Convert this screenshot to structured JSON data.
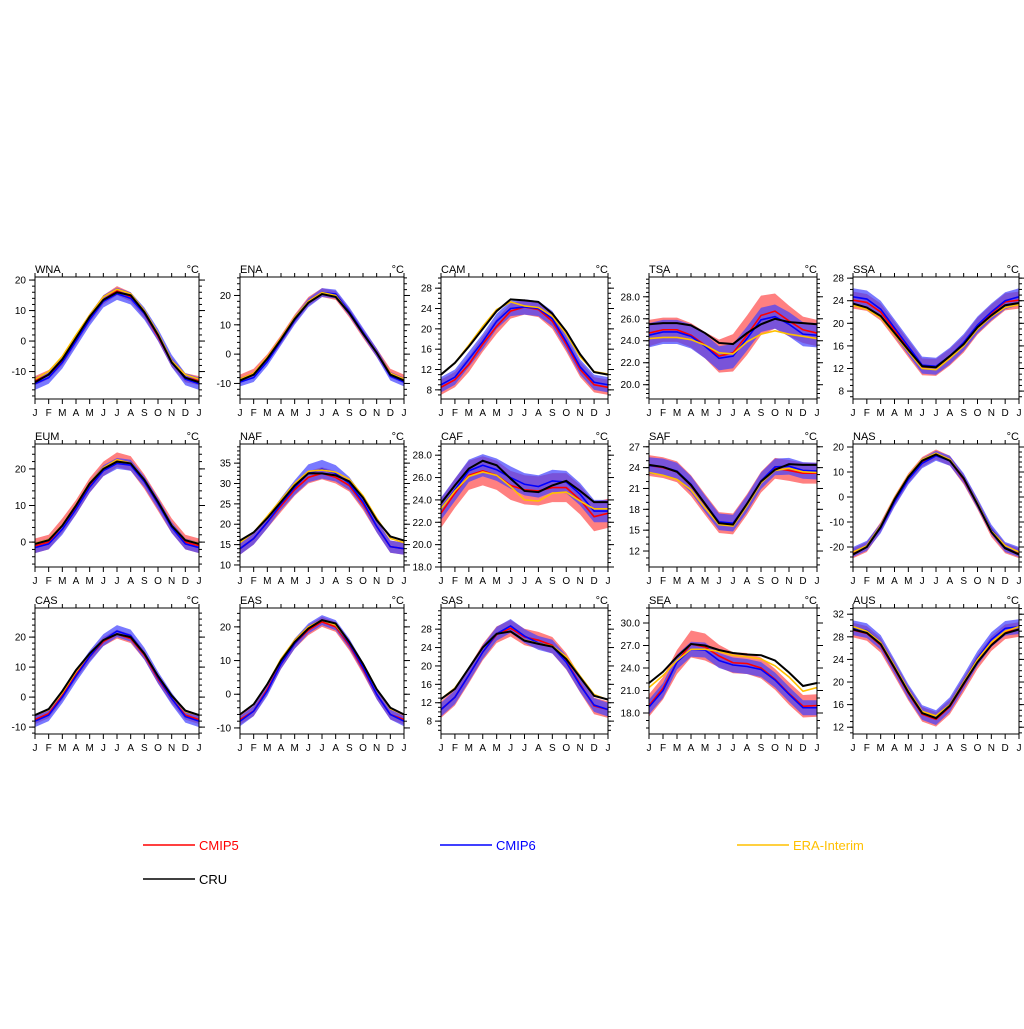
{
  "chart_data": [
    {
      "type": "line",
      "title": "WNA",
      "unit": "°C",
      "ylim": [
        -19,
        21
      ],
      "yticks": [
        "-10",
        "0",
        "10",
        "20"
      ],
      "cru": [
        -13.5,
        -11,
        -6,
        1,
        8,
        13.5,
        16,
        15,
        9.5,
        2,
        -7,
        -12,
        -13.5
      ],
      "era": [
        -12.5,
        -10,
        -5,
        2,
        8.5,
        14.5,
        17,
        15.5,
        10,
        2.5,
        -6.5,
        -11,
        -12.5
      ],
      "cmip5": [
        -13,
        -11,
        -6.5,
        0.5,
        7.5,
        13.5,
        16.5,
        14.5,
        9,
        1.5,
        -7,
        -12,
        -13
      ],
      "cmip6": [
        -14,
        -12,
        -7,
        0,
        7,
        13,
        15.5,
        14,
        9,
        2,
        -6.5,
        -12.5,
        -14
      ],
      "cmip5_spread": 1.5,
      "cmip6_spread": 2
    },
    {
      "type": "line",
      "title": "ENA",
      "unit": "°C",
      "ylim": [
        -15.3,
        26.3
      ],
      "yticks": [
        "-10",
        "0",
        "10",
        "20"
      ],
      "cru": [
        -9,
        -7,
        -1.5,
        5,
        12,
        17.5,
        20.5,
        19.5,
        14,
        7,
        0.5,
        -7,
        -9
      ],
      "era": [
        -8.5,
        -6.5,
        -1,
        5.5,
        12.5,
        18,
        21,
        20,
        14,
        7,
        0.5,
        -6.5,
        -8.5
      ],
      "cmip5": [
        -8.5,
        -6.5,
        -1.5,
        5,
        12,
        18,
        21,
        20,
        14,
        7,
        0.5,
        -6.5,
        -8.5
      ],
      "cmip6": [
        -9.5,
        -8,
        -2.5,
        4.5,
        11.5,
        17.5,
        21,
        20.5,
        14.5,
        7.5,
        0.5,
        -7.5,
        -9.5
      ],
      "cmip5_spread": 1.5,
      "cmip6_spread": 1.5
    },
    {
      "type": "line",
      "title": "CAM",
      "unit": "°C",
      "ylim": [
        6.2,
        30.2
      ],
      "yticks": [
        "8",
        "12",
        "16",
        "20",
        "24",
        "28"
      ],
      "cru": [
        11,
        13.3,
        16.5,
        20,
        23.5,
        25.8,
        25.6,
        25.3,
        23,
        19.5,
        15,
        11.5,
        11
      ],
      "era": [
        11,
        13.3,
        16.8,
        20.5,
        23.8,
        25.3,
        24.5,
        24.2,
        22.5,
        19,
        14.5,
        11.6,
        11.1
      ],
      "cmip5": [
        8.5,
        10,
        13,
        17,
        20.5,
        23.5,
        24.3,
        23.8,
        21.5,
        17,
        12,
        9,
        8.5
      ],
      "cmip6": [
        9,
        10.5,
        14,
        17.5,
        21.5,
        24,
        24.3,
        24,
        22,
        17.5,
        12.5,
        9.5,
        9
      ],
      "cmip5_spread": 1.5,
      "cmip6_spread": 1.5
    },
    {
      "type": "line",
      "title": "TSA",
      "unit": "°C",
      "ylim": [
        18.7,
        29.8
      ],
      "yticks": [
        "20.0",
        "22.0",
        "24.0",
        "26.0",
        "28.0"
      ],
      "cru": [
        25.5,
        25.6,
        25.6,
        25.4,
        24.7,
        23.8,
        23.7,
        24.7,
        25.5,
        26.0,
        25.7,
        25.6,
        25.5
      ],
      "era": [
        24.2,
        24.3,
        24.3,
        24.1,
        23.6,
        22.9,
        22.8,
        23.9,
        24.6,
        24.9,
        24.6,
        24.4,
        24.2
      ],
      "cmip5": [
        24.7,
        25,
        25,
        24.5,
        23.6,
        22.6,
        22.9,
        24.5,
        26.3,
        26.7,
        25.8,
        25,
        24.7
      ],
      "cmip6": [
        24.5,
        24.8,
        24.8,
        24.4,
        23.5,
        22.4,
        22.6,
        24.2,
        25.9,
        26.2,
        25.5,
        24.6,
        24.5
      ],
      "cmip5_spread": [
        1.2,
        1.1,
        1.1,
        1.1,
        1.2,
        1.5,
        1.7,
        1.8,
        1.8,
        1.6,
        1.4,
        1.2,
        1.2
      ],
      "cmip6_spread": 1.1
    },
    {
      "type": "line",
      "title": "SSA",
      "unit": "°C",
      "ylim": [
        6.6,
        28.2
      ],
      "yticks": [
        "8",
        "12",
        "16",
        "20",
        "24",
        "28"
      ],
      "cru": [
        23.5,
        22.8,
        21.3,
        18.3,
        15.3,
        12.4,
        12.2,
        14.2,
        16.3,
        19.3,
        21.4,
        23.2,
        23.6
      ],
      "era": [
        23.2,
        22.5,
        21,
        18,
        15,
        12,
        11.8,
        13.8,
        16,
        19,
        21.2,
        22.8,
        23.3
      ],
      "cmip5": [
        24.1,
        23.7,
        22,
        18.8,
        15.5,
        12.3,
        12.2,
        14,
        16.3,
        19.5,
        21.8,
        23.8,
        24.1
      ],
      "cmip6": [
        24.7,
        24.3,
        22.5,
        19.2,
        15.9,
        12.6,
        12.4,
        14.2,
        16.6,
        19.7,
        22,
        24,
        24.7
      ],
      "cmip5_spread": 1.5,
      "cmip6_spread": 1.5
    },
    {
      "type": "line",
      "title": "EUM",
      "unit": "°C",
      "ylim": [
        -6.8,
        26.8
      ],
      "yticks": [
        "0",
        "10",
        "20"
      ],
      "cru": [
        -0.5,
        0.5,
        4.5,
        10,
        16,
        20,
        22,
        21.5,
        17,
        11,
        4.5,
        0.5,
        -0.5
      ],
      "era": [
        -0.3,
        0.7,
        4.7,
        10.2,
        16.2,
        20.3,
        22.5,
        21.6,
        17,
        11,
        4.6,
        0.6,
        -0.3
      ],
      "cmip5": [
        -1,
        0,
        4.5,
        9.5,
        15.5,
        20,
        22.5,
        21.5,
        16.5,
        10.5,
        4.5,
        0,
        -1
      ],
      "cmip6": [
        -1.5,
        -0.5,
        3.5,
        9,
        15,
        19.5,
        21.5,
        21,
        16.5,
        10.5,
        4,
        -0.5,
        -1.5
      ],
      "cmip5_spread": 2,
      "cmip6_spread": 1.5
    },
    {
      "type": "line",
      "title": "NAF",
      "unit": "°C",
      "ylim": [
        9.5,
        39.7
      ],
      "yticks": [
        "10",
        "15",
        "20",
        "25",
        "30",
        "35"
      ],
      "cru": [
        16,
        18,
        21.5,
        25.5,
        29.5,
        32.5,
        32.5,
        32,
        30.5,
        26.5,
        21,
        17,
        16
      ],
      "era": [
        15.5,
        18,
        22,
        26,
        30,
        33,
        33.3,
        32.8,
        31,
        27,
        21.5,
        16.5,
        15.5
      ],
      "cmip5": [
        14,
        16.5,
        20.5,
        24.5,
        28.5,
        31.5,
        32.5,
        31.5,
        29.5,
        25,
        19.5,
        14.5,
        14
      ],
      "cmip6": [
        14,
        16.5,
        20.5,
        25,
        29,
        32.5,
        33.5,
        32.5,
        30,
        25.5,
        19.5,
        14.5,
        14
      ],
      "cmip5_spread": 1.5,
      "cmip6_spread": [
        1.5,
        1.5,
        1.5,
        1.5,
        1.8,
        2.2,
        2.3,
        2.0,
        1.6,
        1.5,
        1.5,
        1.5,
        1.5
      ]
    },
    {
      "type": "line",
      "title": "CAF",
      "unit": "°C",
      "ylim": [
        18,
        29
      ],
      "yticks": [
        "18.0",
        "20.0",
        "22.0",
        "24.0",
        "26.0",
        "28.0"
      ],
      "cru": [
        23.7,
        25.3,
        26.8,
        27.5,
        27.1,
        25.9,
        24.8,
        24.7,
        25.3,
        25.7,
        24.8,
        23.8,
        23.8
      ],
      "era": [
        23.2,
        24.8,
        26.1,
        26.5,
        26.2,
        25.2,
        24.0,
        23.9,
        24.6,
        24.7,
        23.9,
        23.2,
        23.2
      ],
      "cmip5": [
        22.8,
        24.6,
        26.2,
        26.6,
        26.2,
        25.3,
        24.9,
        24.8,
        25.1,
        25.1,
        24.0,
        22.5,
        22.8
      ],
      "cmip6": [
        23.2,
        24.9,
        26.6,
        27.1,
        26.7,
        26.0,
        25.4,
        25.2,
        25.7,
        25.6,
        24.5,
        23.0,
        23.0
      ],
      "cmip5_spread": 1.3,
      "cmip6_spread": 1.0
    },
    {
      "type": "line",
      "title": "SAF",
      "unit": "°C",
      "ylim": [
        9.7,
        27.4
      ],
      "yticks": [
        "12",
        "15",
        "18",
        "21",
        "24",
        "27"
      ],
      "cru": [
        24.4,
        24.1,
        23.4,
        21.5,
        18.8,
        16.0,
        15.8,
        18.8,
        22.0,
        23.7,
        24.5,
        24.4,
        24.4
      ],
      "era": [
        23.3,
        22.9,
        22.3,
        20.8,
        18.2,
        15.8,
        15.6,
        18.5,
        21.8,
        23.6,
        23.9,
        23.4,
        23.3
      ],
      "cmip5": [
        24.3,
        24,
        23.4,
        21.4,
        18.7,
        16.1,
        15.9,
        18.7,
        21.9,
        23.9,
        23.6,
        23.2,
        23.2
      ],
      "cmip6": [
        24.3,
        24.1,
        23.5,
        21.6,
        18.8,
        16.2,
        16,
        18.8,
        22.1,
        24.1,
        24.2,
        23.6,
        23.5
      ],
      "cmip5_spread": 1.5,
      "cmip6_spread": 1.2
    },
    {
      "type": "line",
      "title": "NAS",
      "unit": "°C",
      "ylim": [
        -28,
        21.2
      ],
      "yticks": [
        "-20",
        "-10",
        "0",
        "10",
        "20"
      ],
      "cru": [
        -23,
        -20,
        -12,
        -1,
        8,
        14.5,
        17,
        14.5,
        7.5,
        -3,
        -14,
        -20.5,
        -23
      ],
      "era": [
        -22,
        -19.5,
        -11.5,
        -0.5,
        8.5,
        15,
        17.5,
        15,
        7.5,
        -2.5,
        -13.5,
        -19.5,
        -22
      ],
      "cmip5": [
        -22.5,
        -20,
        -12,
        -1.5,
        7.5,
        14,
        17,
        14.5,
        7,
        -3,
        -14,
        -20.5,
        -22.5
      ],
      "cmip6": [
        -22,
        -19.5,
        -12.5,
        -2,
        7,
        13.5,
        16.5,
        14.5,
        7.5,
        -2.5,
        -13,
        -20,
        -22
      ],
      "cmip5_spread": 2,
      "cmip6_spread": 2
    },
    {
      "type": "line",
      "title": "CAS",
      "unit": "°C",
      "ylim": [
        -12.3,
        29.7
      ],
      "yticks": [
        "-10",
        "0",
        "10",
        "20"
      ],
      "cru": [
        -6,
        -4,
        2,
        9,
        14.5,
        19,
        21,
        20,
        14.5,
        7,
        0.5,
        -4.5,
        -6
      ],
      "era": [
        -6,
        -4.2,
        1.5,
        8.5,
        14.5,
        19,
        21,
        20,
        14.5,
        7,
        0.5,
        -4.8,
        -6
      ],
      "cmip5": [
        -7.5,
        -5.5,
        0.5,
        7.5,
        13.5,
        18.5,
        21,
        19.5,
        14,
        6,
        -0.5,
        -6,
        -7.5
      ],
      "cmip6": [
        -8,
        -6,
        0,
        7,
        13.5,
        19,
        22,
        20.5,
        14.5,
        6.5,
        -0.5,
        -6.5,
        -8
      ],
      "cmip5_spread": 1.5,
      "cmip6_spread": 2
    },
    {
      "type": "line",
      "title": "EAS",
      "unit": "°C",
      "ylim": [
        -11.8,
        25.6
      ],
      "yticks": [
        "-10",
        "0",
        "10",
        "20"
      ],
      "cru": [
        -6,
        -3,
        3,
        10,
        15.5,
        19.5,
        22,
        21,
        15.5,
        9,
        1.5,
        -4,
        -6
      ],
      "era": [
        -6,
        -3,
        3,
        10.5,
        16,
        20,
        22,
        20.5,
        15.5,
        9,
        1.5,
        -4.3,
        -6
      ],
      "cmip5": [
        -7.5,
        -5,
        1.5,
        9,
        15,
        19,
        21.5,
        20,
        14.5,
        7.5,
        0,
        -6,
        -7.5
      ],
      "cmip6": [
        -8,
        -5,
        1,
        9,
        15,
        19.5,
        22,
        20.5,
        15,
        8,
        0,
        -6,
        -8
      ],
      "cmip5_spread": 1.5,
      "cmip6_spread": 1.5
    },
    {
      "type": "line",
      "title": "SAS",
      "unit": "°C",
      "ylim": [
        5.2,
        32.6
      ],
      "yticks": [
        "8",
        "12",
        "16",
        "20",
        "24",
        "28"
      ],
      "cru": [
        12.8,
        15,
        19.5,
        24,
        27,
        27.5,
        25.5,
        24.8,
        24.2,
        21.5,
        17.5,
        13.5,
        12.7
      ],
      "era": [
        12.8,
        15.2,
        19.5,
        24,
        27,
        27.5,
        25.6,
        24.9,
        24.3,
        22,
        17.8,
        13.8,
        12.6
      ],
      "cmip5": [
        10.5,
        13.2,
        18,
        23,
        26.8,
        28.2,
        26.3,
        25.6,
        24.5,
        21,
        16,
        11.3,
        10.5
      ],
      "cmip6": [
        10.5,
        13.2,
        18,
        23,
        27,
        28.7,
        26.5,
        25,
        24.2,
        20.8,
        15.8,
        11.5,
        10.5
      ],
      "cmip5_spread": 1.8,
      "cmip6_spread": 1.5
    },
    {
      "type": "line",
      "title": "SEA",
      "unit": "°C",
      "ylim": [
        15.2,
        32
      ],
      "yticks": [
        "18.0",
        "21.0",
        "24.0",
        "27.0",
        "30.0"
      ],
      "cru": [
        22,
        23.5,
        25.5,
        27.2,
        27,
        26.4,
        26,
        25.8,
        25.7,
        25,
        23.4,
        21.6,
        22
      ],
      "era": [
        21.4,
        23,
        25,
        26.5,
        26.5,
        26.2,
        25.7,
        25.5,
        25.2,
        24.3,
        22.8,
        20.9,
        21.4
      ],
      "cmip5": [
        19,
        21.3,
        24.8,
        27.2,
        26.8,
        25.6,
        24.7,
        24.6,
        24.0,
        22.5,
        20.6,
        18.9,
        19.0
      ],
      "cmip6": [
        18.8,
        21.0,
        24.8,
        26.5,
        26.4,
        25.0,
        24.4,
        24.2,
        23.8,
        22.4,
        20.5,
        18.7,
        18.7
      ],
      "cmip5_spread": [
        1.5,
        1.5,
        1.6,
        1.8,
        1.8,
        1.5,
        1.4,
        1.4,
        1.4,
        1.4,
        1.5,
        1.5,
        1.5
      ],
      "cmip6_spread": 1.0
    },
    {
      "type": "line",
      "title": "AUS",
      "unit": "°C",
      "ylim": [
        10.8,
        33.1
      ],
      "yticks": [
        "12",
        "16",
        "20",
        "24",
        "28",
        "32"
      ],
      "cru": [
        29.3,
        28.7,
        26.7,
        22.5,
        18.2,
        14.5,
        13.6,
        15.8,
        19.7,
        23.5,
        26.5,
        28.6,
        29.3
      ],
      "era": [
        29.8,
        29,
        27,
        22.8,
        18.5,
        14.8,
        14,
        16,
        20,
        24,
        27,
        29,
        29.8
      ],
      "cmip5": [
        29.2,
        28.6,
        26.5,
        22.3,
        18,
        14.3,
        13.4,
        15.6,
        19.5,
        23.6,
        26.8,
        28.9,
        29.3
      ],
      "cmip6": [
        29.6,
        29.1,
        27,
        22.7,
        18.3,
        14.6,
        13.7,
        16,
        20,
        24.2,
        27.5,
        29.5,
        29.8
      ],
      "cmip5_spread": 1.3,
      "cmip6_spread": 1.3
    }
  ],
  "months": [
    "J",
    "F",
    "M",
    "A",
    "M",
    "J",
    "J",
    "A",
    "S",
    "O",
    "N",
    "D",
    "J"
  ],
  "legend": [
    {
      "key": "cmip5",
      "label": "CMIP5",
      "color": "#ff0000"
    },
    {
      "key": "cmip6",
      "label": "CMIP6",
      "color": "#0000ff"
    },
    {
      "key": "era",
      "label": "ERA-Interim",
      "color": "#ffc000"
    },
    {
      "key": "cru",
      "label": "CRU",
      "color": "#000000"
    }
  ],
  "colors": {
    "cmip5_band": "#ff8080",
    "cmip6_band": "#4040ff",
    "cmip5": "#ff0000",
    "cmip6": "#0000ff",
    "era": "#ffc000",
    "cru": "#000000"
  }
}
